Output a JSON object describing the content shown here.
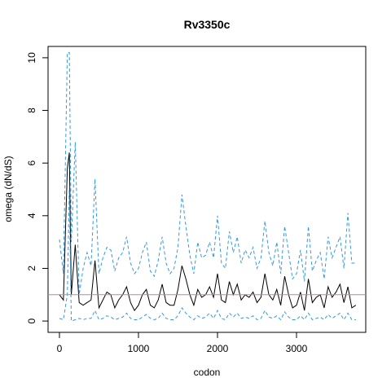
{
  "chart_data": {
    "type": "line",
    "title": "Rv3350c",
    "x_label": "codon",
    "y_label": "omega (dN/dS)",
    "x": [
      0,
      50,
      100,
      125,
      150,
      200,
      250,
      300,
      350,
      400,
      450,
      500,
      550,
      600,
      650,
      700,
      750,
      800,
      850,
      900,
      950,
      1000,
      1050,
      1100,
      1150,
      1200,
      1250,
      1300,
      1350,
      1400,
      1450,
      1500,
      1550,
      1600,
      1650,
      1700,
      1750,
      1800,
      1850,
      1900,
      1950,
      2000,
      2050,
      2100,
      2150,
      2200,
      2250,
      2300,
      2350,
      2400,
      2450,
      2500,
      2550,
      2600,
      2650,
      2700,
      2750,
      2800,
      2850,
      2900,
      2950,
      3000,
      3050,
      3100,
      3150,
      3200,
      3250,
      3300,
      3350,
      3400,
      3450,
      3500,
      3550,
      3600,
      3650,
      3700,
      3750
    ],
    "series": [
      {
        "name": "omega",
        "color": "#000000",
        "dash": false,
        "values": [
          1.0,
          0.8,
          5.8,
          6.4,
          1.0,
          2.9,
          0.7,
          0.6,
          0.7,
          0.8,
          2.3,
          0.5,
          0.8,
          1.1,
          1.0,
          0.5,
          0.8,
          1.0,
          1.3,
          0.7,
          0.4,
          0.6,
          1.0,
          1.2,
          0.6,
          0.5,
          0.8,
          1.4,
          0.7,
          0.6,
          0.6,
          1.2,
          2.1,
          1.6,
          1.0,
          0.6,
          1.2,
          0.9,
          1.0,
          1.3,
          0.9,
          1.8,
          0.8,
          0.7,
          1.5,
          1.0,
          1.4,
          0.8,
          1.0,
          0.9,
          1.1,
          0.7,
          0.9,
          1.8,
          1.0,
          0.8,
          1.2,
          0.6,
          1.7,
          1.0,
          0.5,
          0.6,
          1.1,
          0.4,
          1.6,
          0.7,
          0.9,
          1.0,
          0.5,
          1.3,
          0.9,
          1.1,
          1.4,
          0.7,
          1.3,
          0.5,
          0.6
        ]
      },
      {
        "name": "upper",
        "color": "#3399dd",
        "dash": true,
        "values": [
          3.1,
          1.8,
          10.2,
          10.2,
          3.0,
          6.8,
          1.0,
          2.0,
          2.6,
          2.1,
          5.4,
          1.8,
          2.4,
          2.8,
          2.7,
          1.9,
          2.4,
          2.6,
          3.2,
          2.2,
          1.8,
          2.0,
          2.6,
          3.0,
          1.9,
          1.7,
          2.3,
          3.2,
          2.2,
          1.8,
          2.0,
          2.8,
          4.8,
          3.6,
          2.5,
          1.8,
          3.0,
          2.4,
          2.5,
          3.0,
          2.4,
          4.0,
          2.2,
          2.0,
          3.4,
          2.6,
          3.2,
          2.2,
          2.7,
          2.4,
          2.8,
          2.0,
          2.4,
          3.8,
          2.6,
          2.1,
          3.0,
          1.8,
          3.6,
          2.6,
          1.6,
          1.8,
          2.7,
          1.5,
          3.6,
          1.9,
          2.3,
          2.6,
          1.6,
          3.2,
          2.4,
          2.8,
          3.2,
          2.0,
          4.1,
          2.2,
          2.2
        ]
      },
      {
        "name": "lower",
        "color": "#3399dd",
        "dash": true,
        "values": [
          0.1,
          0.05,
          1.0,
          5.0,
          0.0,
          0.05,
          0.1,
          0.05,
          0.1,
          0.1,
          0.4,
          0.05,
          0.1,
          0.2,
          0.15,
          0.05,
          0.1,
          0.15,
          0.3,
          0.1,
          0.05,
          0.05,
          0.15,
          0.25,
          0.1,
          0.05,
          0.1,
          0.3,
          0.1,
          0.05,
          0.05,
          0.2,
          0.5,
          0.3,
          0.15,
          0.05,
          0.2,
          0.1,
          0.15,
          0.3,
          0.1,
          0.4,
          0.1,
          0.05,
          0.3,
          0.15,
          0.3,
          0.1,
          0.15,
          0.1,
          0.2,
          0.05,
          0.1,
          0.4,
          0.15,
          0.1,
          0.2,
          0.05,
          0.35,
          0.15,
          0.05,
          0.05,
          0.2,
          0.05,
          0.3,
          0.05,
          0.1,
          0.15,
          0.05,
          0.25,
          0.1,
          0.2,
          0.3,
          0.05,
          0.3,
          0.05,
          0.05
        ]
      }
    ],
    "hline": {
      "value": 1,
      "color": "#c080a8"
    },
    "xlim": [
      -144,
      3876
    ],
    "ylim": [
      -0.43,
      10.43
    ],
    "xticks": [
      0,
      1000,
      2000,
      3000
    ],
    "yticks": [
      0,
      2,
      4,
      6,
      8,
      10
    ]
  }
}
